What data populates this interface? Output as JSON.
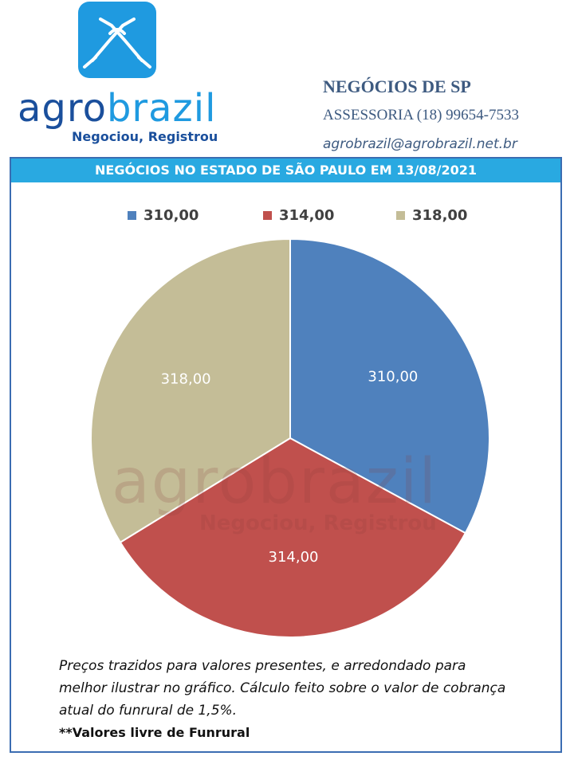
{
  "header": {
    "brand_prefix": "agro",
    "brand_suffix": "brazil",
    "slogan": "Negociou, Registrou",
    "company": "NEGÓCIOS DE SP",
    "phone": "ASSESSORIA (18) 99654-7533",
    "email": "agrobrazil@agrobrazil.net.br"
  },
  "chart_data": {
    "type": "pie",
    "title": "NEGÓCIOS NO ESTADO DE SÃO PAULO EM 13/08/2021",
    "categories": [
      "310,00",
      "314,00",
      "318,00"
    ],
    "values": [
      310,
      314,
      318
    ],
    "value_labels": [
      "310,00",
      "314,00",
      "318,00"
    ],
    "colors": [
      "#4f81bd",
      "#c0504d",
      "#c4bd97"
    ],
    "legend": "top"
  },
  "notes": {
    "text": "Preços trazidos para valores presentes, e arredondado para melhor ilustrar no gráfico. Cálculo feito sobre o valor de cobrança atual do funrural de 1,5%.",
    "bold": "**Valores livre de Funrural"
  }
}
